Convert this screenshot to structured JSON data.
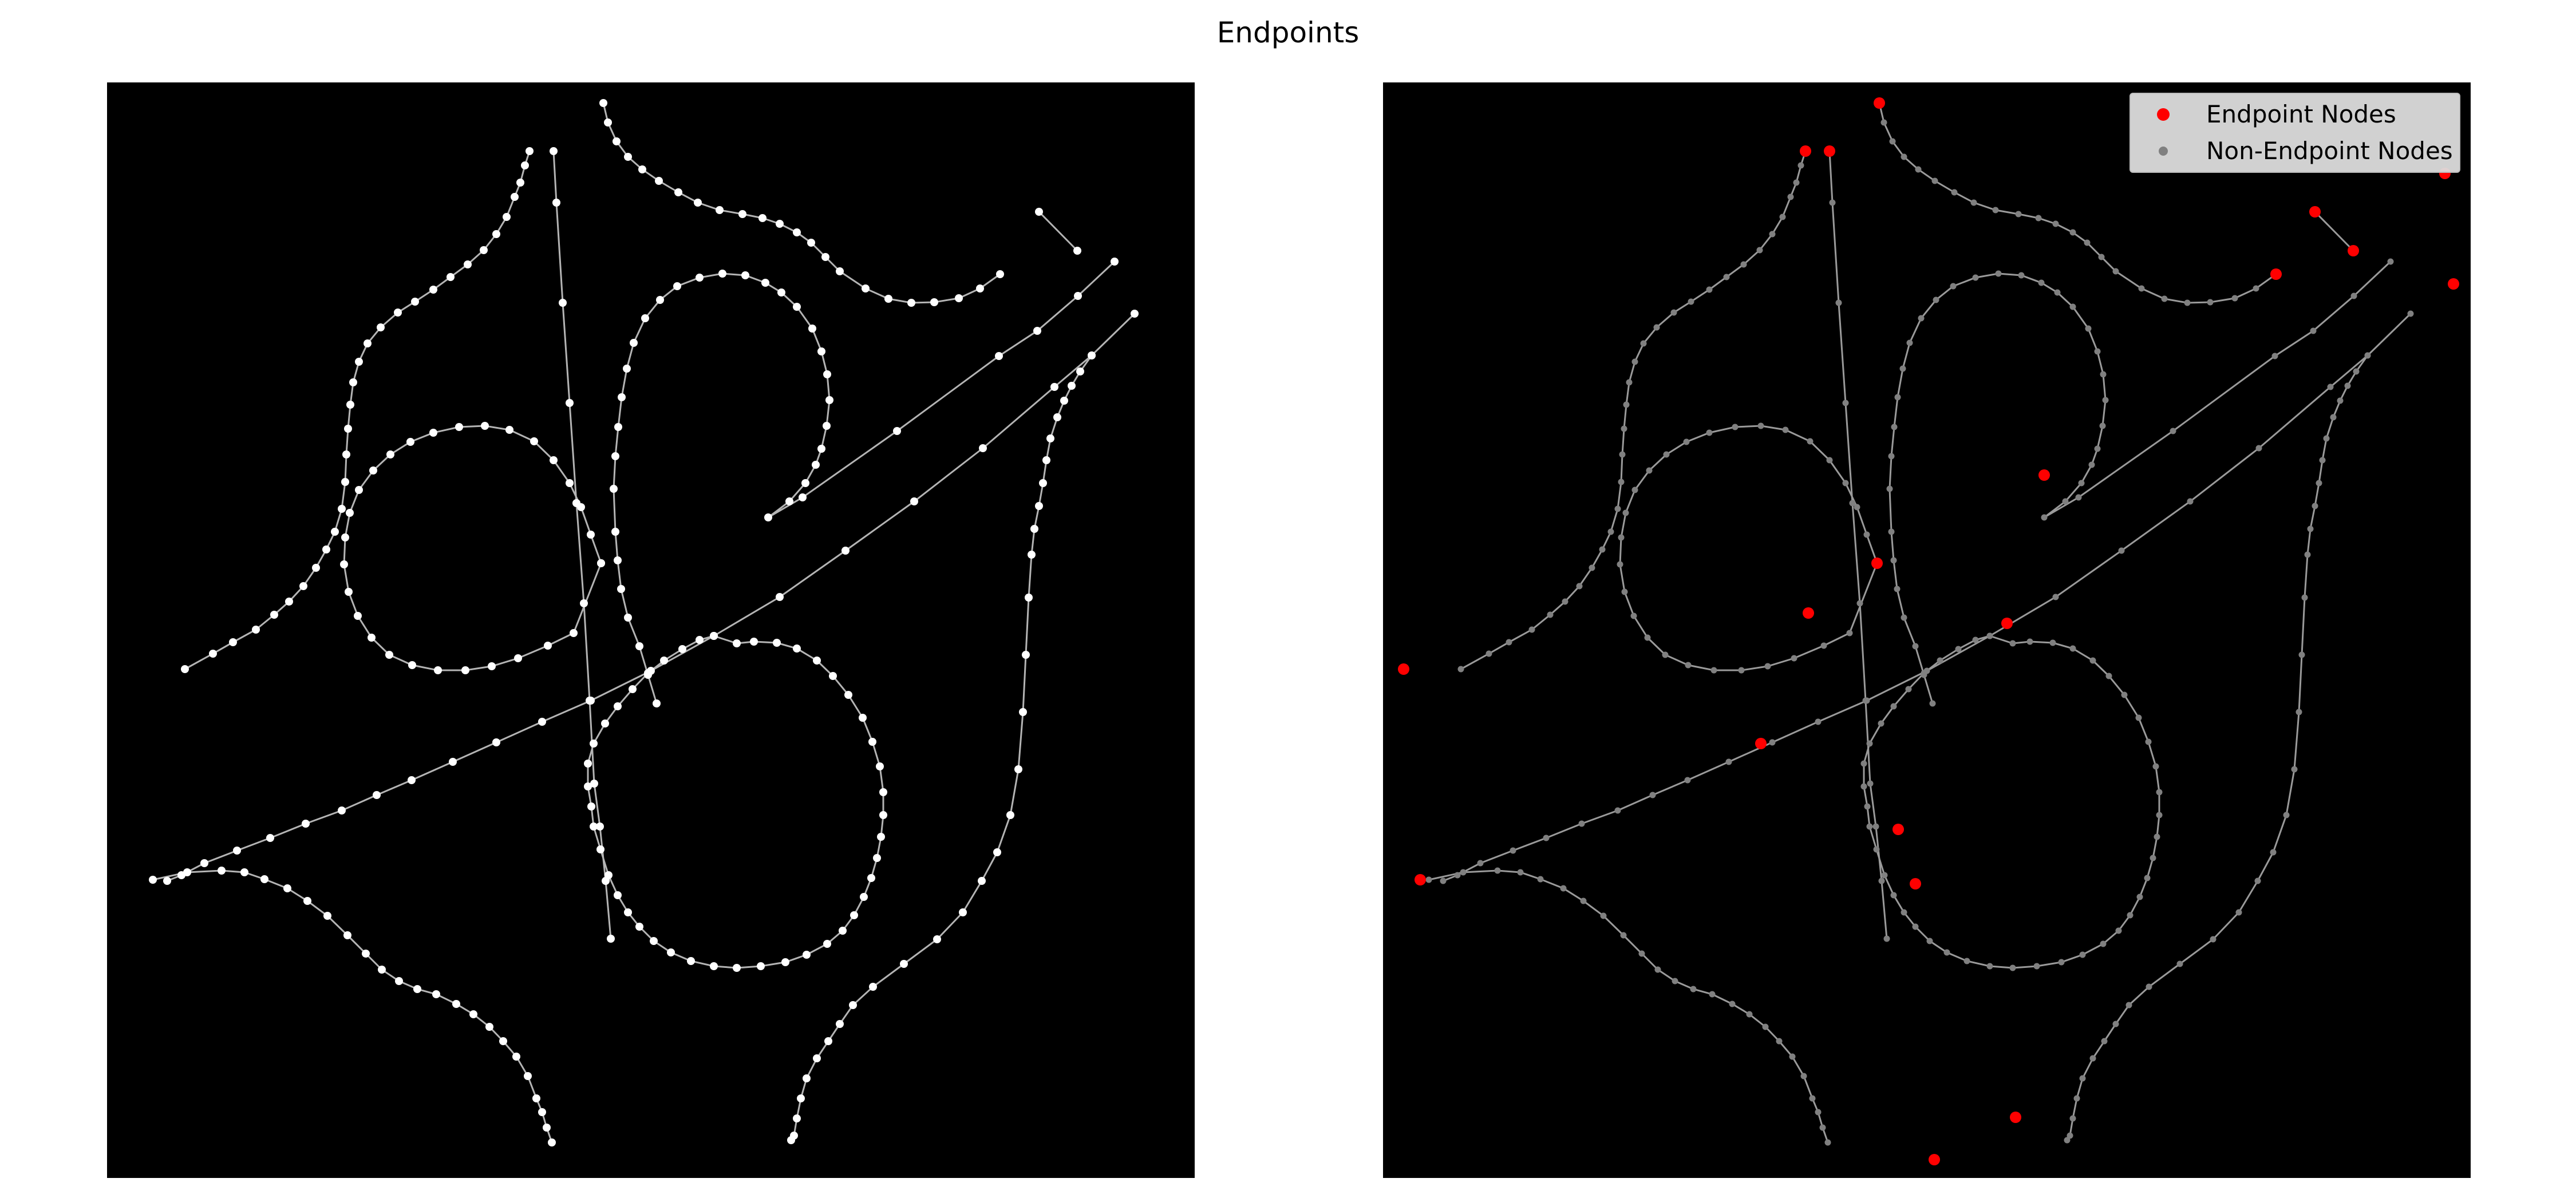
{
  "title": "Endpoints",
  "colors": {
    "background": "#000000",
    "left_edge": "#b4b4b4",
    "left_node": "#ffffff",
    "right_edge": "#9a9a9a",
    "right_node": "#808080",
    "endpoint_node": "#ff0000"
  },
  "legend": {
    "placement": "top-right",
    "endpoint_label": "Endpoint Nodes",
    "non_endpoint_label": "Non-Endpoint Nodes"
  },
  "panels": [
    {
      "id": "left",
      "content": "skeleton graph nodes and edges"
    },
    {
      "id": "right",
      "content": "skeleton graph with endpoint nodes highlighted"
    }
  ]
}
